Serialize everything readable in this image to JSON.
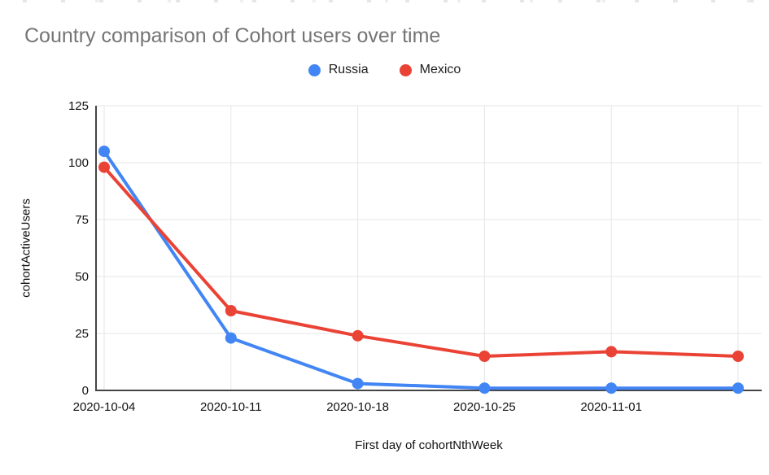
{
  "title": {
    "text": "Country comparison of Cohort users over time",
    "color": "#757575"
  },
  "legend": {
    "items": [
      {
        "label": "Russia",
        "color": "#4285F4"
      },
      {
        "label": "Mexico",
        "color": "#EA4335"
      }
    ]
  },
  "chart_data": {
    "type": "line",
    "title": "Country comparison of Cohort users over time",
    "xlabel": "First day of cohortNthWeek",
    "ylabel": "cohortActiveUsers",
    "categories": [
      "2020-10-04",
      "2020-10-11",
      "2020-10-18",
      "2020-10-25",
      "2020-11-01",
      ""
    ],
    "series": [
      {
        "name": "Russia",
        "color": "#4285F4",
        "values": [
          105,
          23,
          3,
          1,
          1,
          1
        ]
      },
      {
        "name": "Mexico",
        "color": "#EA4335",
        "values": [
          98,
          35,
          24,
          15,
          17,
          15
        ]
      }
    ],
    "y_ticks": [
      0,
      25,
      50,
      75,
      100,
      125
    ],
    "ylim": [
      0,
      125
    ],
    "grid": true,
    "legend_position": "top",
    "colors": {
      "gridline": "#e6e6e6",
      "axis": "#444444",
      "tick_text": "#111111"
    }
  }
}
